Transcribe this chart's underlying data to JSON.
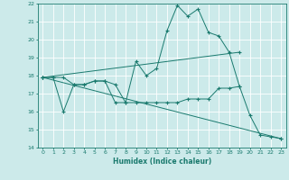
{
  "xlabel": "Humidex (Indice chaleur)",
  "xlim": [
    -0.5,
    23.5
  ],
  "ylim": [
    14,
    22
  ],
  "yticks": [
    14,
    15,
    16,
    17,
    18,
    19,
    20,
    21,
    22
  ],
  "xticks": [
    0,
    1,
    2,
    3,
    4,
    5,
    6,
    7,
    8,
    9,
    10,
    11,
    12,
    13,
    14,
    15,
    16,
    17,
    18,
    19,
    20,
    21,
    22,
    23
  ],
  "bg_color": "#cceaea",
  "grid_color": "#ffffff",
  "line_color": "#1a7a6e",
  "series1_x": [
    0,
    1,
    2,
    3,
    4,
    5,
    6,
    7,
    8,
    9,
    10,
    11,
    12,
    13,
    14,
    15,
    16,
    17,
    18,
    19
  ],
  "series1_y": [
    17.9,
    17.9,
    17.9,
    17.5,
    17.5,
    17.7,
    17.7,
    17.5,
    16.5,
    18.8,
    18.0,
    18.4,
    20.5,
    21.9,
    21.3,
    21.7,
    20.4,
    20.2,
    19.3,
    17.4
  ],
  "series2_x": [
    0,
    1,
    2,
    3,
    4,
    5,
    6,
    7,
    8,
    9,
    10,
    11,
    12,
    13,
    14,
    15,
    16,
    17,
    18,
    19,
    20,
    21,
    22,
    23
  ],
  "series2_y": [
    17.9,
    17.9,
    16.0,
    17.5,
    17.5,
    17.7,
    17.7,
    16.5,
    16.5,
    16.5,
    16.5,
    16.5,
    16.5,
    16.5,
    16.7,
    16.7,
    16.7,
    17.3,
    17.3,
    17.4,
    15.8,
    14.7,
    14.6,
    14.5
  ],
  "trend1_x": [
    0,
    23
  ],
  "trend1_y": [
    17.9,
    14.5
  ],
  "trend2_x": [
    0,
    19
  ],
  "trend2_y": [
    17.9,
    19.3
  ]
}
